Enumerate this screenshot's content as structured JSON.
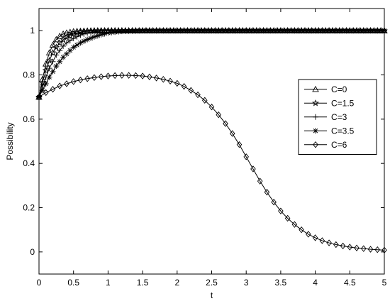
{
  "chart_data": {
    "type": "line",
    "xlabel": "t",
    "ylabel": "Possibility",
    "xlim": [
      0,
      5
    ],
    "ylim": [
      -0.1,
      1.1
    ],
    "x_ticks": [
      "0",
      "0.5",
      "1",
      "1.5",
      "2",
      "2.5",
      "3",
      "3.5",
      "4",
      "4.5",
      "5"
    ],
    "y_ticks": [
      "0",
      "0.2",
      "0.4",
      "0.6",
      "0.8",
      "1"
    ],
    "grid": false,
    "legend_position": "right",
    "series": [
      {
        "name": "C=0",
        "marker": "triangle",
        "x": [
          0,
          0.05,
          0.1,
          0.15,
          0.2,
          0.25,
          0.3,
          0.35,
          0.4,
          0.5,
          0.6,
          0.7,
          0.8,
          0.9,
          1.0,
          1.5,
          2.0,
          2.5,
          3.0,
          3.5,
          4.0,
          4.5,
          5.0
        ],
        "y": [
          0.7,
          0.78,
          0.85,
          0.9,
          0.935,
          0.96,
          0.975,
          0.985,
          0.99,
          0.996,
          0.998,
          0.999,
          1.0,
          1.0,
          1.0,
          1.0,
          1.0,
          1.0,
          1.0,
          1.0,
          1.0,
          1.0,
          1.0
        ]
      },
      {
        "name": "C=1.5",
        "marker": "star",
        "x": [
          0,
          0.05,
          0.1,
          0.15,
          0.2,
          0.25,
          0.3,
          0.35,
          0.4,
          0.5,
          0.6,
          0.7,
          0.8,
          0.9,
          1.0,
          1.5,
          2.0,
          2.5,
          3.0,
          3.5,
          4.0,
          4.5,
          5.0
        ],
        "y": [
          0.7,
          0.765,
          0.82,
          0.865,
          0.9,
          0.925,
          0.945,
          0.96,
          0.97,
          0.985,
          0.993,
          0.997,
          0.999,
          1.0,
          1.0,
          1.0,
          1.0,
          1.0,
          1.0,
          1.0,
          1.0,
          1.0,
          1.0
        ]
      },
      {
        "name": "C=3",
        "marker": "plus",
        "x": [
          0,
          0.05,
          0.1,
          0.15,
          0.2,
          0.25,
          0.3,
          0.35,
          0.4,
          0.5,
          0.6,
          0.7,
          0.8,
          0.9,
          1.0,
          1.2,
          1.5,
          2.0,
          2.5,
          3.0,
          3.5,
          4.0,
          4.5,
          5.0
        ],
        "y": [
          0.7,
          0.745,
          0.79,
          0.83,
          0.86,
          0.89,
          0.91,
          0.93,
          0.945,
          0.965,
          0.98,
          0.99,
          0.995,
          0.998,
          0.999,
          1.0,
          1.0,
          1.0,
          1.0,
          1.0,
          1.0,
          1.0,
          1.0,
          1.0
        ]
      },
      {
        "name": "C=3.5",
        "marker": "asterisk",
        "x": [
          0,
          0.05,
          0.1,
          0.15,
          0.2,
          0.25,
          0.3,
          0.35,
          0.4,
          0.5,
          0.6,
          0.7,
          0.8,
          0.9,
          1.0,
          1.2,
          1.5,
          2.0,
          2.5,
          3.0,
          3.5,
          4.0,
          4.5,
          5.0
        ],
        "y": [
          0.7,
          0.73,
          0.76,
          0.79,
          0.815,
          0.84,
          0.86,
          0.88,
          0.895,
          0.925,
          0.945,
          0.96,
          0.972,
          0.982,
          0.99,
          0.997,
          1.0,
          1.0,
          1.0,
          1.0,
          1.0,
          1.0,
          1.0,
          1.0
        ]
      },
      {
        "name": "C=6",
        "marker": "diamond",
        "x": [
          0,
          0.1,
          0.2,
          0.3,
          0.4,
          0.5,
          0.6,
          0.7,
          0.8,
          0.9,
          1.0,
          1.1,
          1.2,
          1.3,
          1.4,
          1.5,
          1.6,
          1.7,
          1.8,
          1.9,
          2.0,
          2.1,
          2.2,
          2.3,
          2.4,
          2.5,
          2.6,
          2.7,
          2.8,
          2.9,
          3.0,
          3.1,
          3.2,
          3.3,
          3.4,
          3.5,
          3.6,
          3.7,
          3.8,
          3.9,
          4.0,
          4.1,
          4.2,
          4.3,
          4.4,
          4.5,
          4.6,
          4.7,
          4.8,
          4.9,
          5.0
        ],
        "y": [
          0.7,
          0.72,
          0.735,
          0.75,
          0.76,
          0.77,
          0.777,
          0.783,
          0.788,
          0.792,
          0.795,
          0.797,
          0.798,
          0.798,
          0.797,
          0.795,
          0.791,
          0.786,
          0.78,
          0.772,
          0.762,
          0.748,
          0.73,
          0.71,
          0.685,
          0.655,
          0.62,
          0.58,
          0.535,
          0.485,
          0.43,
          0.375,
          0.32,
          0.27,
          0.225,
          0.185,
          0.152,
          0.124,
          0.1,
          0.08,
          0.064,
          0.051,
          0.041,
          0.033,
          0.027,
          0.022,
          0.018,
          0.015,
          0.012,
          0.01,
          0.008
        ]
      }
    ]
  }
}
